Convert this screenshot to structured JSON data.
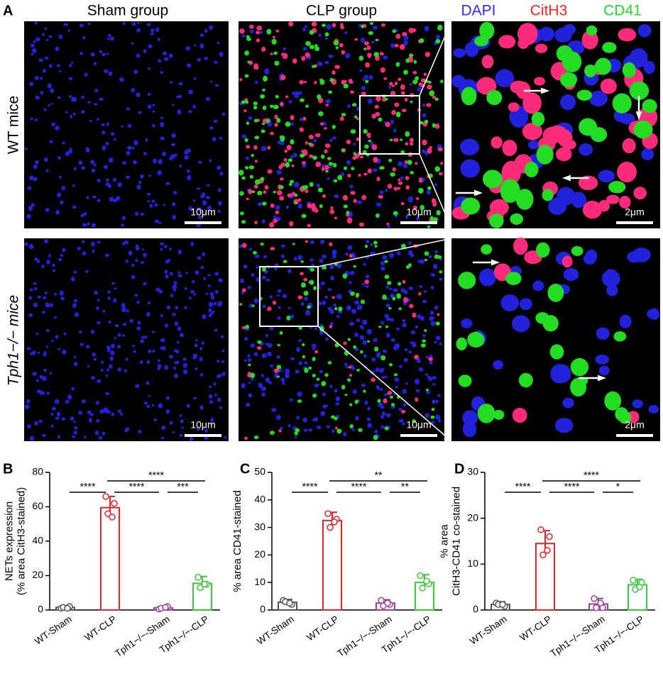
{
  "panel_labels": [
    "A",
    "B",
    "C",
    "D"
  ],
  "column_headers": [
    "Sham group",
    "CLP group"
  ],
  "legend": [
    {
      "text": "DAPI",
      "color": "#2b2bff"
    },
    {
      "text": "CitH3",
      "color": "#ff1f1f"
    },
    {
      "text": "CD41",
      "color": "#22dd22"
    }
  ],
  "row_labels": [
    "WT mice",
    "Tph1−/− mice"
  ],
  "scale_bars": [
    "10μm",
    "10μm",
    "2μm",
    "10μm",
    "10μm",
    "2μm"
  ],
  "chart_data": [
    {
      "type": "bar",
      "ylabel": [
        "NETs expression",
        "(% area CitH3-stained)"
      ],
      "categories": [
        "WT-Sham",
        "WT-CLP",
        "Tph1−/−-Sham",
        "Tph1−/−-CLP"
      ],
      "colors": [
        "#555555",
        "#e8232a",
        "#a0409a",
        "#3cc83c"
      ],
      "values": [
        1.5,
        59.5,
        1.2,
        15.5
      ],
      "errors": [
        1,
        6.5,
        0.8,
        4
      ],
      "points": [
        [
          1,
          2,
          1.5,
          1
        ],
        [
          66,
          62,
          56,
          54
        ],
        [
          0.5,
          2,
          1,
          1.5
        ],
        [
          19,
          15,
          13,
          15
        ]
      ],
      "ylim": [
        0,
        80
      ],
      "yticks": [
        0,
        20,
        40,
        60,
        80
      ],
      "annotations": [
        {
          "label": "****",
          "between": [
            1,
            3
          ]
        },
        {
          "label": "****",
          "between": [
            0,
            1
          ]
        },
        {
          "label": "****",
          "between": [
            1,
            2
          ]
        },
        {
          "label": "***",
          "between": [
            2,
            3
          ]
        }
      ]
    },
    {
      "type": "bar",
      "ylabel": [
        "% area CD41-stained"
      ],
      "categories": [
        "WT-Sham",
        "WT-CLP",
        "Tph1−/−-Sham",
        "Tph1−/−-CLP"
      ],
      "colors": [
        "#555555",
        "#e8232a",
        "#a0409a",
        "#3cc83c"
      ],
      "values": [
        2.8,
        32.5,
        2.5,
        10
      ],
      "errors": [
        1,
        3,
        1.2,
        2.8
      ],
      "points": [
        [
          3.5,
          2,
          3,
          2.5
        ],
        [
          35,
          33,
          30,
          32
        ],
        [
          3.5,
          2,
          1.5,
          2.5
        ],
        [
          12.5,
          9.5,
          8,
          10.5
        ]
      ],
      "ylim": [
        0,
        50
      ],
      "yticks": [
        0,
        10,
        20,
        30,
        40,
        50
      ],
      "annotations": [
        {
          "label": "**",
          "between": [
            1,
            3
          ]
        },
        {
          "label": "****",
          "between": [
            0,
            1
          ]
        },
        {
          "label": "****",
          "between": [
            1,
            2
          ]
        },
        {
          "label": "**",
          "between": [
            2,
            3
          ]
        }
      ]
    },
    {
      "type": "bar",
      "ylabel": [
        "% area",
        "CitH3-CD41 co-stained"
      ],
      "categories": [
        "WT-Sham",
        "WT-CLP",
        "Tph1−/−-Sham",
        "Tph1−/−-CLP"
      ],
      "colors": [
        "#555555",
        "#e8232a",
        "#a0409a",
        "#3cc83c"
      ],
      "values": [
        1.2,
        14.5,
        1.3,
        5.5
      ],
      "errors": [
        0.6,
        2.8,
        1.2,
        1.2
      ],
      "points": [
        [
          1.5,
          0.8,
          1.2,
          1.2
        ],
        [
          17.5,
          16,
          12,
          13
        ],
        [
          2.5,
          0.5,
          0.5,
          1.5
        ],
        [
          6.5,
          6,
          4.5,
          5
        ]
      ],
      "ylim": [
        0,
        30
      ],
      "yticks": [
        0,
        10,
        20,
        30
      ],
      "annotations": [
        {
          "label": "****",
          "between": [
            1,
            3
          ]
        },
        {
          "label": "****",
          "between": [
            0,
            1
          ]
        },
        {
          "label": "****",
          "between": [
            1,
            2
          ]
        },
        {
          "label": "*",
          "between": [
            2,
            3
          ]
        }
      ]
    }
  ]
}
